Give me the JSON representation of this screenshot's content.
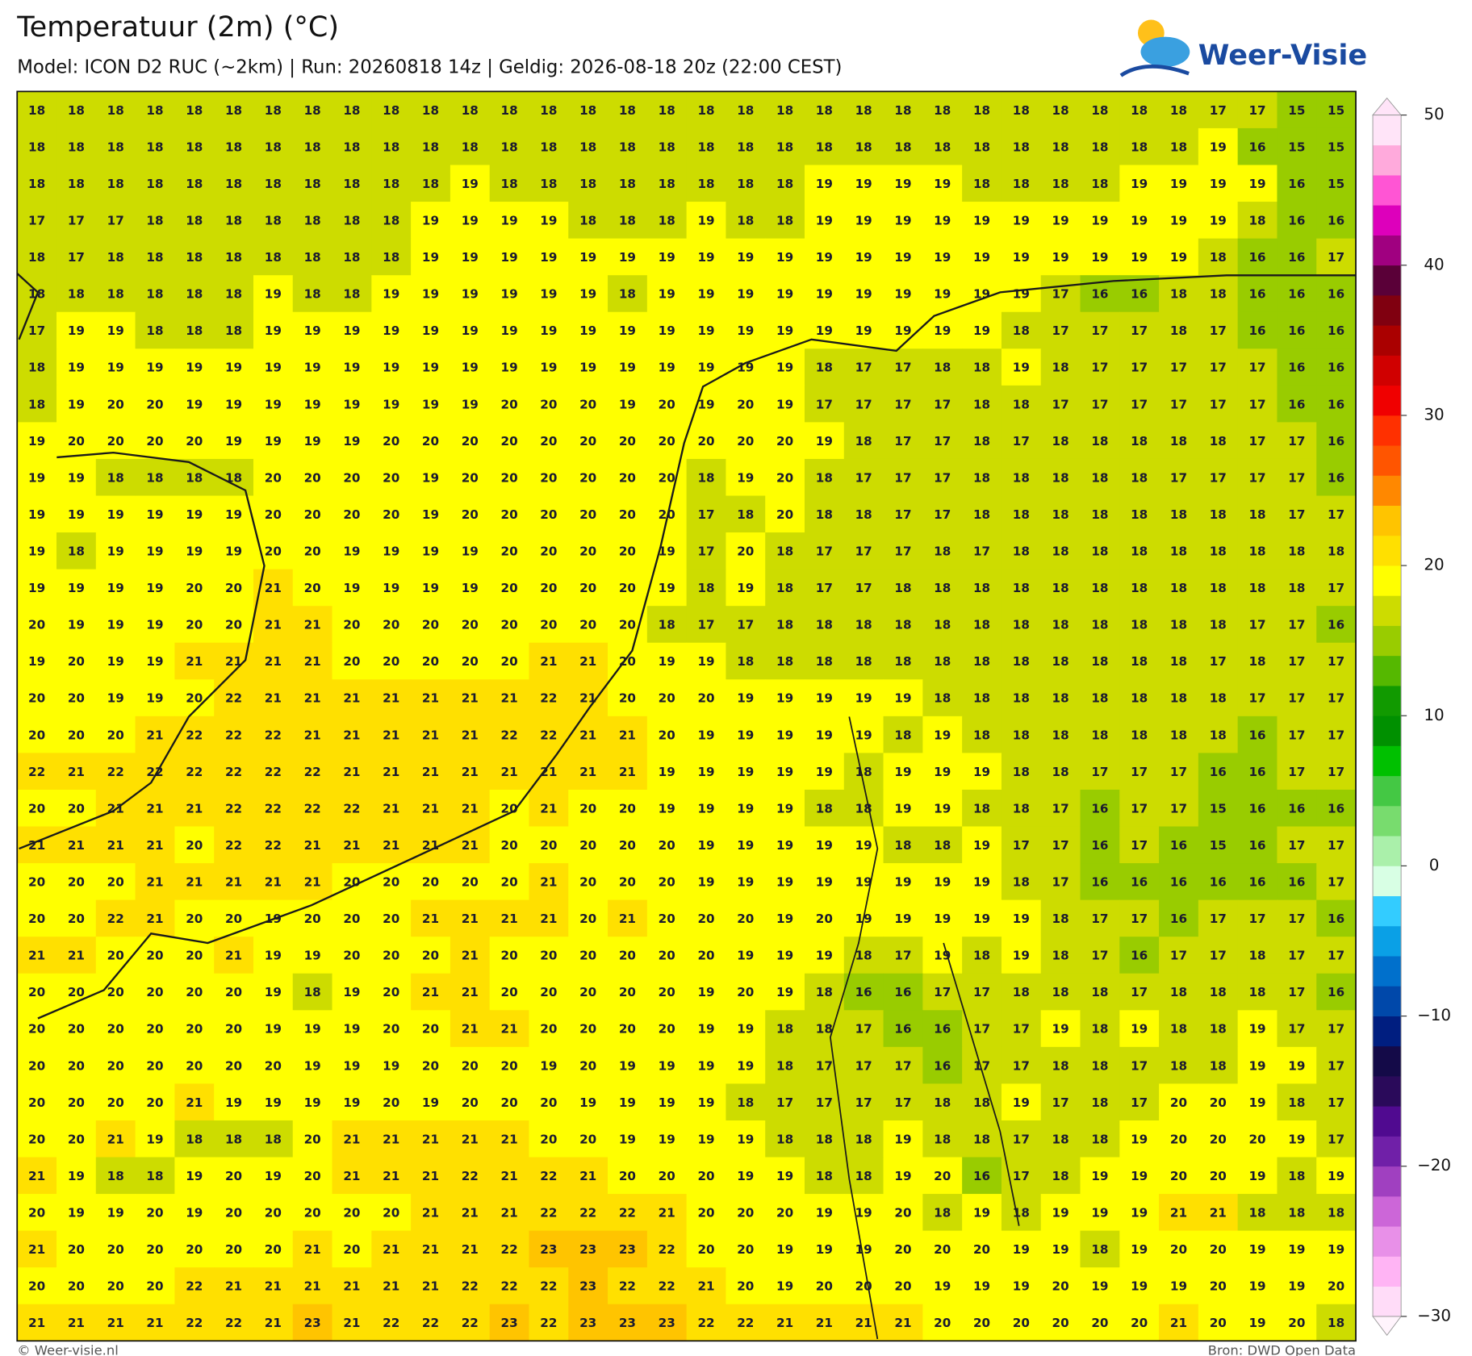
{
  "header": {
    "title": "Temperatuur (2m) (°C)",
    "subtitle": "Model: ICON D2 RUC (~2km)  |  Run: 20260818 14z  |  Geldig: 2026-08-18 20z (22:00 CEST)",
    "logo": "Weer-Visie"
  },
  "map": {
    "values": [
      [
        18,
        18,
        18,
        18,
        18,
        18,
        18,
        18,
        18,
        18,
        18,
        18,
        18,
        18,
        18,
        18,
        18,
        18,
        18,
        18,
        18,
        18,
        18,
        18,
        18,
        18,
        18,
        18,
        18,
        18,
        17,
        17,
        15,
        15
      ],
      [
        18,
        18,
        18,
        18,
        18,
        18,
        18,
        18,
        18,
        18,
        18,
        18,
        18,
        18,
        18,
        18,
        18,
        18,
        18,
        18,
        18,
        18,
        18,
        18,
        18,
        18,
        18,
        18,
        18,
        18,
        19,
        16,
        15,
        15
      ],
      [
        18,
        18,
        18,
        18,
        18,
        18,
        18,
        18,
        18,
        18,
        18,
        19,
        18,
        18,
        18,
        18,
        18,
        18,
        18,
        18,
        19,
        19,
        19,
        19,
        18,
        18,
        18,
        18,
        19,
        19,
        19,
        19,
        16,
        15
      ],
      [
        17,
        17,
        17,
        18,
        18,
        18,
        18,
        18,
        18,
        18,
        19,
        19,
        19,
        19,
        18,
        18,
        18,
        19,
        18,
        18,
        19,
        19,
        19,
        19,
        19,
        19,
        19,
        19,
        19,
        19,
        19,
        18,
        16,
        16
      ],
      [
        18,
        17,
        18,
        18,
        18,
        18,
        18,
        18,
        18,
        18,
        19,
        19,
        19,
        19,
        19,
        19,
        19,
        19,
        19,
        19,
        19,
        19,
        19,
        19,
        19,
        19,
        19,
        19,
        19,
        19,
        18,
        16,
        16,
        17
      ],
      [
        18,
        18,
        18,
        18,
        18,
        18,
        19,
        18,
        18,
        19,
        19,
        19,
        19,
        19,
        19,
        18,
        19,
        19,
        19,
        19,
        19,
        19,
        19,
        19,
        19,
        19,
        17,
        16,
        16,
        18,
        18,
        16,
        16,
        16
      ],
      [
        17,
        19,
        19,
        18,
        18,
        18,
        19,
        19,
        19,
        19,
        19,
        19,
        19,
        19,
        19,
        19,
        19,
        19,
        19,
        19,
        19,
        19,
        19,
        19,
        19,
        18,
        17,
        17,
        17,
        18,
        17,
        16,
        16,
        16
      ],
      [
        18,
        19,
        19,
        19,
        19,
        19,
        19,
        19,
        19,
        19,
        19,
        19,
        19,
        19,
        19,
        19,
        19,
        19,
        19,
        19,
        18,
        17,
        17,
        18,
        18,
        19,
        18,
        17,
        17,
        17,
        17,
        17,
        16,
        16
      ],
      [
        18,
        19,
        20,
        20,
        19,
        19,
        19,
        19,
        19,
        19,
        19,
        19,
        20,
        20,
        20,
        19,
        20,
        19,
        20,
        19,
        17,
        17,
        17,
        17,
        18,
        18,
        17,
        17,
        17,
        17,
        17,
        17,
        16,
        16
      ],
      [
        19,
        20,
        20,
        20,
        20,
        19,
        19,
        19,
        19,
        20,
        20,
        20,
        20,
        20,
        20,
        20,
        20,
        20,
        20,
        20,
        19,
        18,
        17,
        17,
        18,
        17,
        18,
        18,
        18,
        18,
        18,
        17,
        17,
        16
      ],
      [
        19,
        19,
        18,
        18,
        18,
        18,
        20,
        20,
        20,
        20,
        19,
        20,
        20,
        20,
        20,
        20,
        20,
        18,
        19,
        20,
        18,
        17,
        17,
        17,
        18,
        18,
        18,
        18,
        18,
        17,
        17,
        17,
        17,
        16
      ],
      [
        19,
        19,
        19,
        19,
        19,
        19,
        20,
        20,
        20,
        20,
        19,
        20,
        20,
        20,
        20,
        20,
        20,
        17,
        18,
        20,
        18,
        18,
        17,
        17,
        18,
        18,
        18,
        18,
        18,
        18,
        18,
        18,
        17,
        17
      ],
      [
        19,
        18,
        19,
        19,
        19,
        19,
        20,
        20,
        19,
        19,
        19,
        19,
        20,
        20,
        20,
        20,
        19,
        17,
        20,
        18,
        17,
        17,
        17,
        18,
        17,
        18,
        18,
        18,
        18,
        18,
        18,
        18,
        18,
        18
      ],
      [
        19,
        19,
        19,
        19,
        20,
        20,
        21,
        20,
        19,
        19,
        19,
        19,
        20,
        20,
        20,
        20,
        19,
        18,
        19,
        18,
        17,
        17,
        18,
        18,
        18,
        18,
        18,
        18,
        18,
        18,
        18,
        18,
        18,
        17
      ],
      [
        20,
        19,
        19,
        19,
        20,
        20,
        21,
        21,
        20,
        20,
        20,
        20,
        20,
        20,
        20,
        20,
        18,
        17,
        17,
        18,
        18,
        18,
        18,
        18,
        18,
        18,
        18,
        18,
        18,
        18,
        18,
        17,
        17,
        16
      ],
      [
        19,
        20,
        19,
        19,
        21,
        21,
        21,
        21,
        20,
        20,
        20,
        20,
        20,
        21,
        21,
        20,
        19,
        19,
        18,
        18,
        18,
        18,
        18,
        18,
        18,
        18,
        18,
        18,
        18,
        18,
        17,
        18,
        17,
        17
      ],
      [
        20,
        20,
        19,
        19,
        20,
        22,
        21,
        21,
        21,
        21,
        21,
        21,
        21,
        22,
        21,
        20,
        20,
        20,
        19,
        19,
        19,
        19,
        19,
        18,
        18,
        18,
        18,
        18,
        18,
        18,
        18,
        17,
        17,
        17
      ],
      [
        20,
        20,
        20,
        21,
        22,
        22,
        22,
        21,
        21,
        21,
        21,
        21,
        22,
        22,
        21,
        21,
        20,
        19,
        19,
        19,
        19,
        19,
        18,
        19,
        18,
        18,
        18,
        18,
        18,
        18,
        18,
        16,
        17,
        17
      ],
      [
        22,
        21,
        22,
        22,
        22,
        22,
        22,
        22,
        21,
        21,
        21,
        21,
        21,
        21,
        21,
        21,
        19,
        19,
        19,
        19,
        19,
        18,
        19,
        19,
        19,
        18,
        18,
        17,
        17,
        17,
        16,
        16,
        17,
        17
      ],
      [
        20,
        20,
        21,
        21,
        21,
        22,
        22,
        22,
        22,
        21,
        21,
        21,
        20,
        21,
        20,
        20,
        19,
        19,
        19,
        19,
        18,
        18,
        19,
        19,
        18,
        18,
        17,
        16,
        17,
        17,
        15,
        16,
        16,
        16
      ],
      [
        21,
        21,
        21,
        21,
        20,
        22,
        22,
        21,
        21,
        21,
        21,
        21,
        20,
        20,
        20,
        20,
        20,
        19,
        19,
        19,
        19,
        19,
        18,
        18,
        19,
        17,
        17,
        16,
        17,
        16,
        15,
        16,
        17,
        17
      ],
      [
        20,
        20,
        20,
        21,
        21,
        21,
        21,
        21,
        20,
        20,
        20,
        20,
        20,
        21,
        20,
        20,
        20,
        19,
        19,
        19,
        19,
        19,
        19,
        19,
        19,
        18,
        17,
        16,
        16,
        16,
        16,
        16,
        16,
        17
      ],
      [
        20,
        20,
        22,
        21,
        20,
        20,
        19,
        20,
        20,
        20,
        21,
        21,
        21,
        21,
        20,
        21,
        20,
        20,
        20,
        19,
        20,
        19,
        19,
        19,
        19,
        19,
        18,
        17,
        17,
        16,
        17,
        17,
        17,
        16
      ],
      [
        21,
        21,
        20,
        20,
        20,
        21,
        19,
        19,
        20,
        20,
        20,
        21,
        20,
        20,
        20,
        20,
        20,
        20,
        19,
        19,
        19,
        18,
        17,
        19,
        18,
        19,
        18,
        17,
        16,
        17,
        17,
        18,
        17,
        17
      ],
      [
        20,
        20,
        20,
        20,
        20,
        20,
        19,
        18,
        19,
        20,
        21,
        21,
        20,
        20,
        20,
        20,
        20,
        19,
        20,
        19,
        18,
        16,
        16,
        17,
        17,
        18,
        18,
        18,
        17,
        18,
        18,
        18,
        17,
        16
      ],
      [
        20,
        20,
        20,
        20,
        20,
        20,
        19,
        19,
        19,
        20,
        20,
        21,
        21,
        20,
        20,
        20,
        20,
        19,
        19,
        18,
        18,
        17,
        16,
        16,
        17,
        17,
        19,
        18,
        19,
        18,
        18,
        19,
        17,
        17
      ],
      [
        20,
        20,
        20,
        20,
        20,
        20,
        20,
        19,
        19,
        19,
        20,
        20,
        20,
        19,
        20,
        19,
        19,
        19,
        19,
        18,
        17,
        17,
        17,
        16,
        17,
        17,
        18,
        18,
        17,
        18,
        18,
        19,
        19,
        17
      ],
      [
        20,
        20,
        20,
        20,
        21,
        19,
        19,
        19,
        19,
        20,
        19,
        20,
        20,
        20,
        19,
        19,
        19,
        19,
        18,
        17,
        17,
        17,
        17,
        18,
        18,
        19,
        17,
        18,
        17,
        20,
        20,
        19,
        18,
        17
      ],
      [
        20,
        20,
        21,
        19,
        18,
        18,
        18,
        20,
        21,
        21,
        21,
        21,
        21,
        20,
        20,
        19,
        19,
        19,
        19,
        18,
        18,
        18,
        19,
        18,
        18,
        17,
        18,
        18,
        19,
        20,
        20,
        20,
        19,
        17
      ],
      [
        21,
        19,
        18,
        18,
        19,
        20,
        19,
        20,
        21,
        21,
        21,
        22,
        21,
        22,
        21,
        20,
        20,
        20,
        19,
        19,
        18,
        18,
        19,
        20,
        16,
        17,
        18,
        19,
        19,
        20,
        20,
        19,
        18,
        19
      ],
      [
        20,
        19,
        19,
        20,
        19,
        20,
        20,
        20,
        20,
        20,
        21,
        21,
        21,
        22,
        22,
        22,
        21,
        20,
        20,
        20,
        19,
        19,
        20,
        18,
        19,
        18,
        19,
        19,
        19,
        21,
        21,
        18,
        18,
        18
      ],
      [
        21,
        20,
        20,
        20,
        20,
        20,
        20,
        21,
        20,
        21,
        21,
        21,
        22,
        23,
        23,
        23,
        22,
        20,
        20,
        19,
        19,
        19,
        20,
        20,
        20,
        19,
        19,
        18,
        19,
        20,
        20,
        19,
        19,
        19
      ],
      [
        20,
        20,
        20,
        20,
        22,
        21,
        21,
        21,
        21,
        21,
        21,
        22,
        22,
        22,
        23,
        22,
        22,
        21,
        20,
        19,
        20,
        20,
        20,
        19,
        19,
        19,
        20,
        19,
        19,
        19,
        20,
        19,
        19,
        20
      ],
      [
        21,
        21,
        21,
        21,
        22,
        22,
        21,
        23,
        21,
        22,
        22,
        22,
        23,
        22,
        23,
        23,
        23,
        22,
        22,
        21,
        21,
        21,
        21,
        20,
        20,
        20,
        20,
        20,
        20,
        21,
        20,
        19,
        20,
        18
      ]
    ]
  },
  "colorbar": {
    "lim": [
      -30,
      50
    ],
    "ticks": [
      {
        "value": -30,
        "label": "−30"
      },
      {
        "value": -20,
        "label": "−20"
      },
      {
        "value": -10,
        "label": "−10"
      },
      0,
      10,
      20,
      30,
      40,
      50
    ],
    "colors": [
      "#ffdcf8",
      "#ffb4f4",
      "#e890e8",
      "#cc66d8",
      "#a040c0",
      "#7020a8",
      "#500a90",
      "#2a0a5a",
      "#140a48",
      "#001e80",
      "#0048aa",
      "#0070cc",
      "#0aa0e6",
      "#33ccff",
      "#d8ffe4",
      "#aaf0aa",
      "#78dc6e",
      "#44c844",
      "#00c000",
      "#009000",
      "#119a00",
      "#55b800",
      "#99cc00",
      "#cddc00",
      "#ffff00",
      "#ffe000",
      "#ffc400",
      "#ff8800",
      "#ff5500",
      "#ff3000",
      "#f00000",
      "#d00000",
      "#aa0000",
      "#800010",
      "#5a0038",
      "#a00080",
      "#dd00bb",
      "#ff55d4",
      "#ffaadc",
      "#ffe4f8"
    ]
  },
  "footer": {
    "left": "© Weer-visie.nl",
    "right": "Bron: DWD Open Data"
  }
}
